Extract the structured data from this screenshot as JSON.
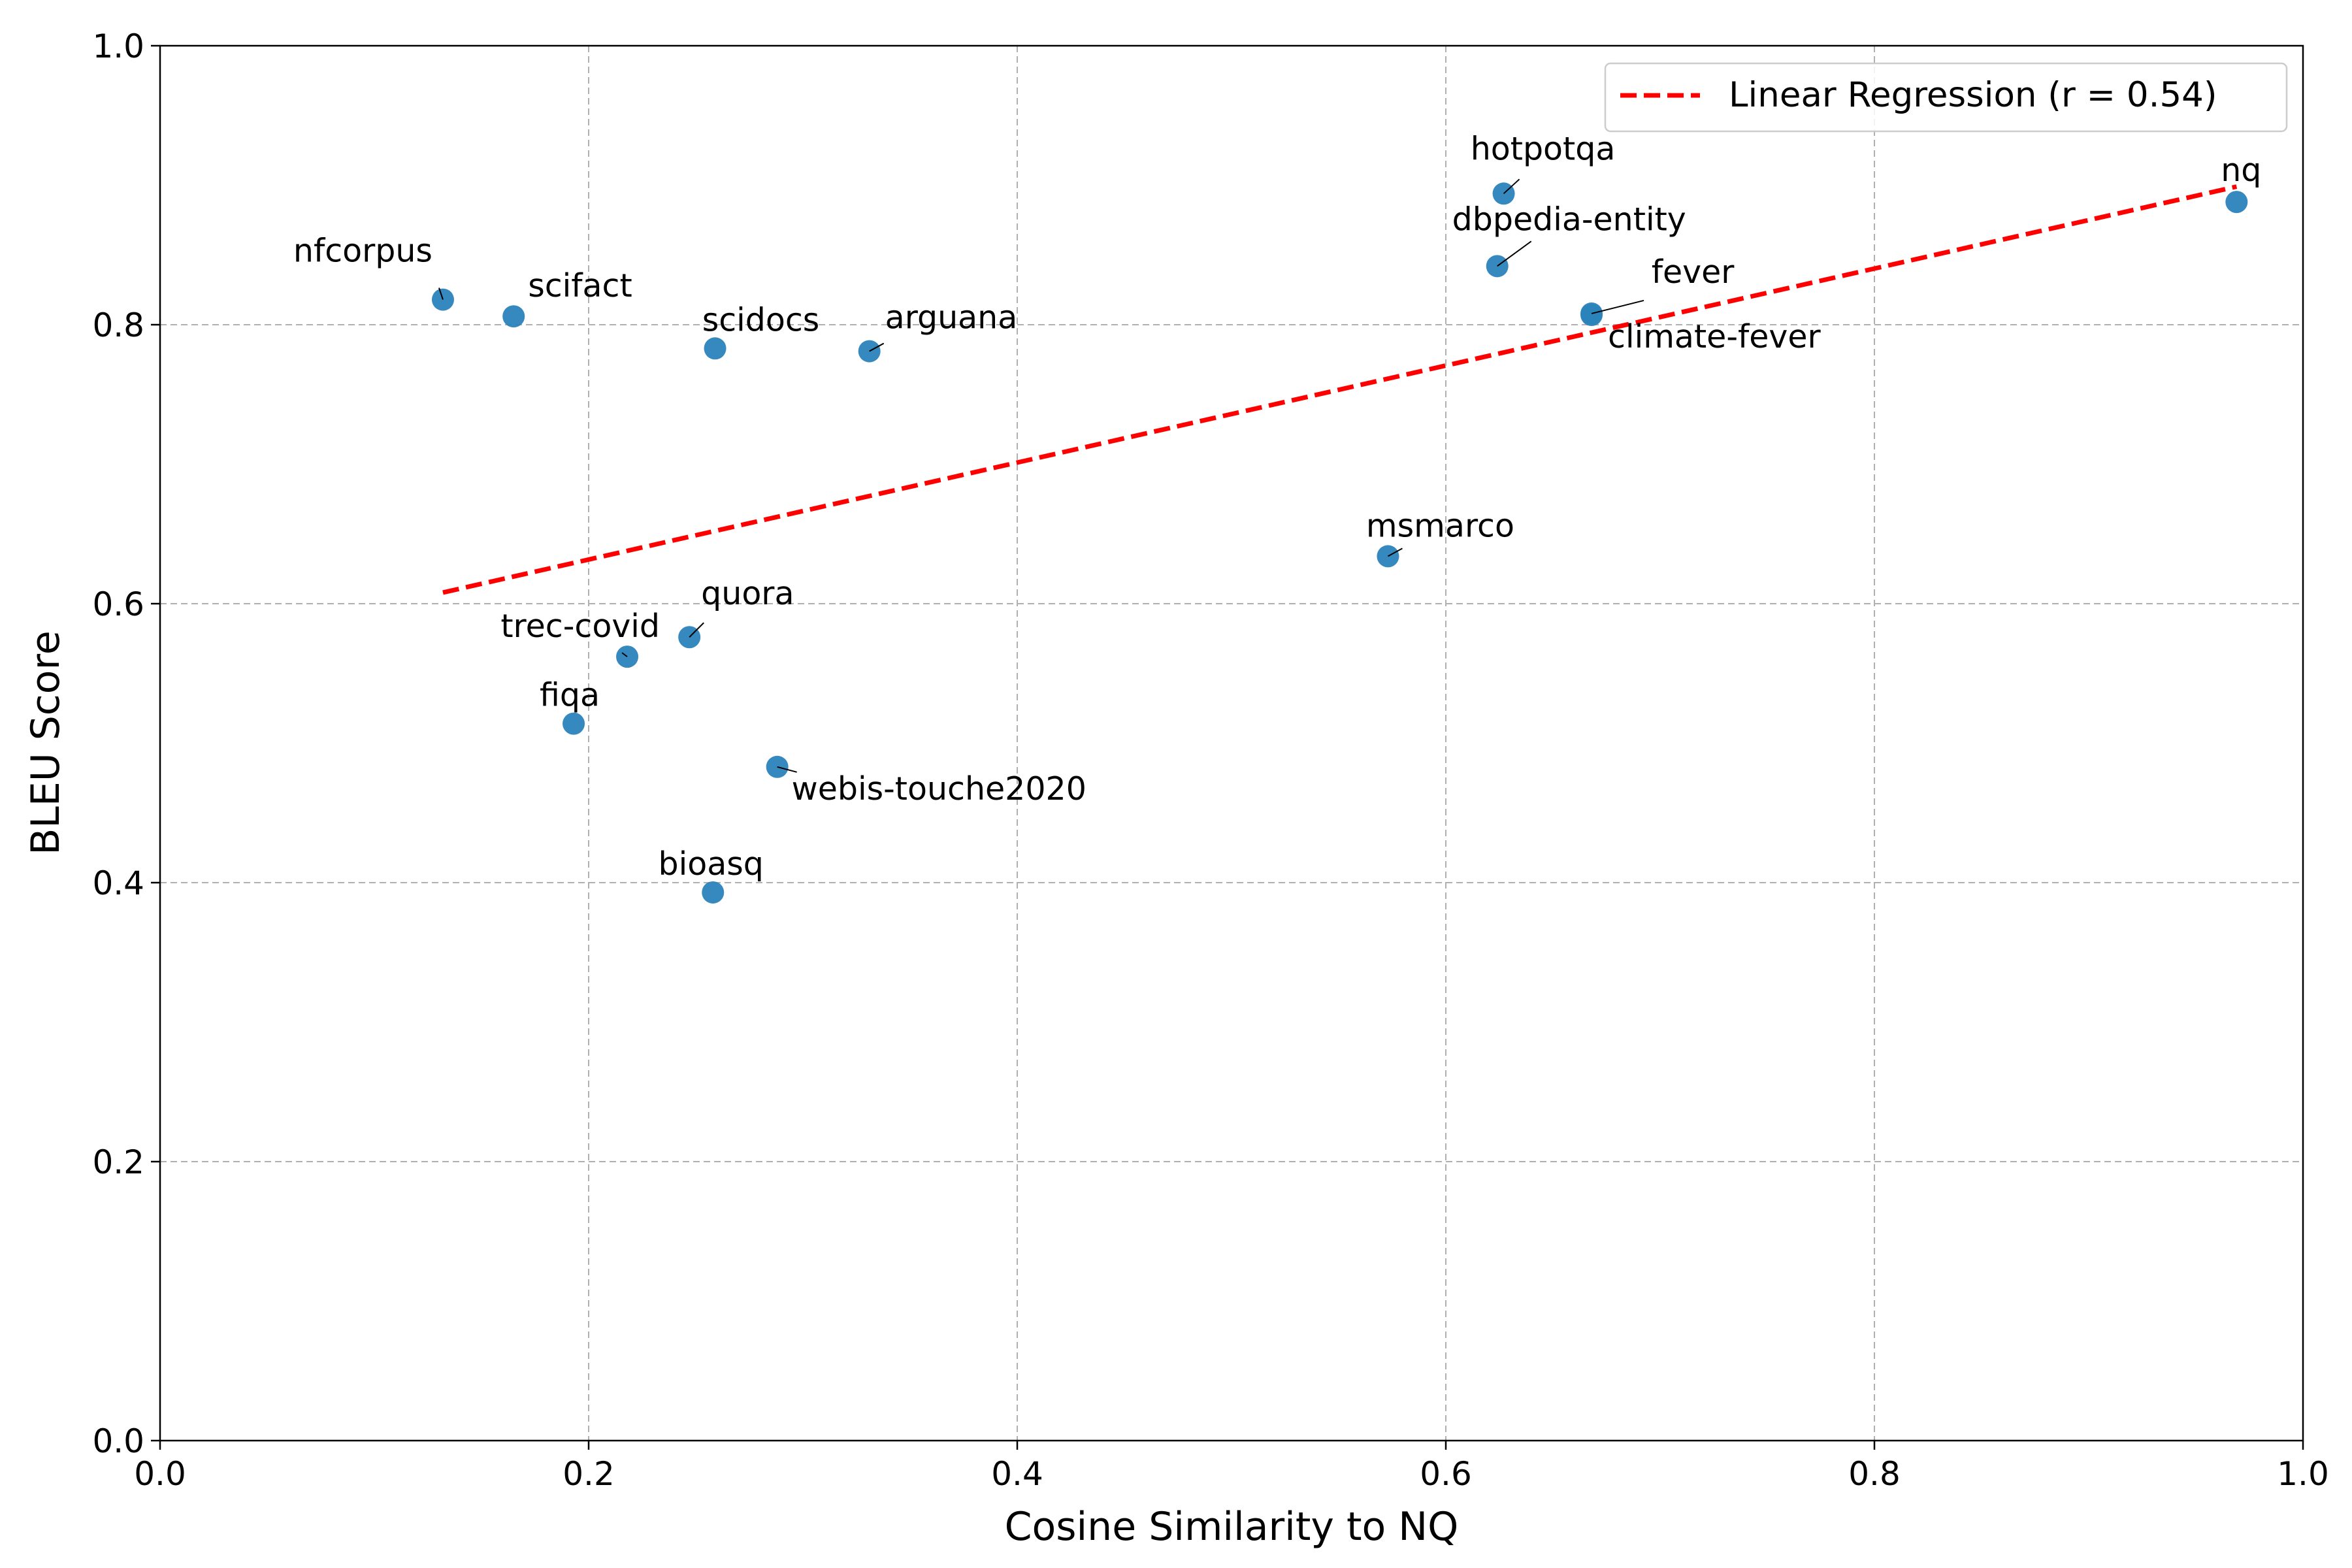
{
  "chart_data": {
    "type": "scatter",
    "title": "",
    "xlabel": "Cosine Similarity to NQ",
    "ylabel": "BLEU Score",
    "xlim": [
      0.0,
      1.0
    ],
    "ylim": [
      0.0,
      1.0
    ],
    "xticks": [
      "0.0",
      "0.2",
      "0.4",
      "0.6",
      "0.8",
      "1.0"
    ],
    "yticks": [
      "0.0",
      "0.2",
      "0.4",
      "0.6",
      "0.8",
      "1.0"
    ],
    "grid": true,
    "legend_position": "top-right",
    "point_color": "#2b83ba",
    "points": [
      {
        "label": "nfcorpus",
        "x": 0.132,
        "y": 0.818
      },
      {
        "label": "scifact",
        "x": 0.165,
        "y": 0.806
      },
      {
        "label": "scidocs",
        "x": 0.259,
        "y": 0.783
      },
      {
        "label": "arguana",
        "x": 0.331,
        "y": 0.781
      },
      {
        "label": "quora",
        "x": 0.247,
        "y": 0.576
      },
      {
        "label": "trec-covid",
        "x": 0.218,
        "y": 0.562
      },
      {
        "label": "fiqa",
        "x": 0.193,
        "y": 0.514
      },
      {
        "label": "webis-touche2020",
        "x": 0.288,
        "y": 0.483
      },
      {
        "label": "bioasq",
        "x": 0.258,
        "y": 0.393
      },
      {
        "label": "msmarco",
        "x": 0.573,
        "y": 0.634
      },
      {
        "label": "hotpotqa",
        "x": 0.627,
        "y": 0.894
      },
      {
        "label": "dbpedia-entity",
        "x": 0.624,
        "y": 0.842
      },
      {
        "label": "fever",
        "x": 0.668,
        "y": 0.808
      },
      {
        "label": "climate-fever",
        "x": 0.668,
        "y": 0.807
      },
      {
        "label": "nq",
        "x": 0.969,
        "y": 0.888
      }
    ],
    "regression": {
      "name": "Linear Regression (r = 0.54)",
      "color": "#ff0000",
      "style": "dashed",
      "x": [
        0.132,
        0.969
      ],
      "y": [
        0.608,
        0.899
      ]
    }
  }
}
